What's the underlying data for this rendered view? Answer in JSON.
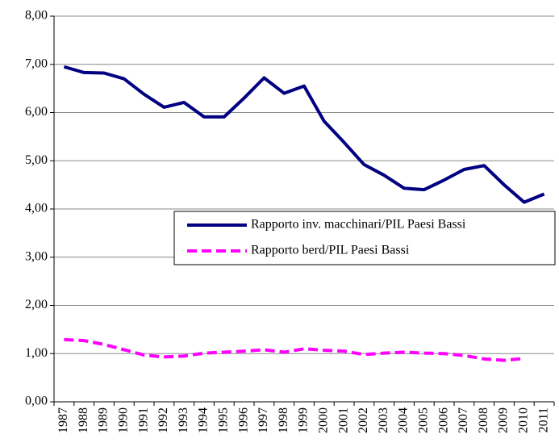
{
  "chart_data": {
    "type": "line",
    "categories": [
      "1987",
      "1988",
      "1989",
      "1990",
      "1991",
      "1992",
      "1993",
      "1994",
      "1995",
      "1996",
      "1997",
      "1998",
      "1999",
      "2000",
      "2001",
      "2002",
      "2003",
      "2004",
      "2005",
      "2006",
      "2007",
      "2008",
      "2009",
      "2010",
      "2011"
    ],
    "series": [
      {
        "name": "Rapporto inv. macchinari/PIL Paesi Bassi",
        "color": "#000080",
        "dash": false,
        "values": [
          6.95,
          6.83,
          6.82,
          6.7,
          6.38,
          6.11,
          6.21,
          5.91,
          5.91,
          6.3,
          6.72,
          6.4,
          6.55,
          5.82,
          5.38,
          4.92,
          4.7,
          4.43,
          4.4,
          4.6,
          4.82,
          4.9,
          4.5,
          4.14,
          4.31
        ]
      },
      {
        "name": "Rapporto berd/PIL Paesi Bassi",
        "color": "#ff00ff",
        "dash": true,
        "values": [
          1.29,
          1.27,
          1.19,
          1.08,
          0.97,
          0.93,
          0.95,
          1.01,
          1.03,
          1.05,
          1.08,
          1.03,
          1.1,
          1.07,
          1.05,
          0.98,
          1.01,
          1.03,
          1.01,
          1.0,
          0.96,
          0.89,
          0.86,
          0.9,
          null
        ]
      }
    ],
    "ylim": [
      0,
      8
    ],
    "yticks": [
      {
        "value": 0,
        "label": "0,00"
      },
      {
        "value": 1,
        "label": "1,00"
      },
      {
        "value": 2,
        "label": "2,00"
      },
      {
        "value": 3,
        "label": "3,00"
      },
      {
        "value": 4,
        "label": "4,00"
      },
      {
        "value": 5,
        "label": "5,00"
      },
      {
        "value": 6,
        "label": "6,00"
      },
      {
        "value": 7,
        "label": "7,00"
      },
      {
        "value": 8,
        "label": "8,00"
      }
    ],
    "grid": true
  }
}
